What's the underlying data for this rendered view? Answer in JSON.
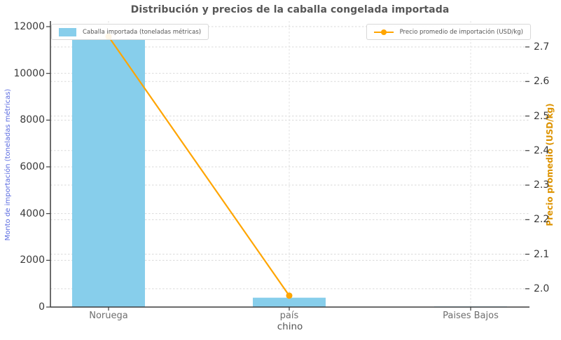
{
  "chart_data": {
    "type": "bar",
    "subtype": "bar+line dual-axis combo",
    "title": "Distribución y precios de la caballa congelada importada",
    "categories": [
      "Noruega",
      "país",
      "Paises Bajos"
    ],
    "xlabel": "chino",
    "series": [
      {
        "name": "Caballa importada (toneladas métricas)",
        "type": "bar",
        "axis": "left",
        "color": "#87CEEB",
        "values": [
          11440,
          400,
          25
        ]
      },
      {
        "name": "Precio promedio de importación (USD/kg)",
        "type": "line",
        "axis": "right",
        "color": "#FFA500",
        "marker": "circle",
        "values": [
          2.73,
          1.98,
          null
        ]
      }
    ],
    "left_axis": {
      "label": "Monto de importación (toneladas métricas)",
      "color": "#5a6be0",
      "ticks": [
        0,
        2000,
        4000,
        6000,
        8000,
        10000,
        12000
      ],
      "range": [
        0,
        12240
      ]
    },
    "right_axis": {
      "label": "Precio promedio (USD/kg)",
      "color": "#dd9300",
      "ticks": [
        2.0,
        2.1,
        2.2,
        2.3,
        2.4,
        2.5,
        2.6,
        2.7
      ],
      "range": [
        1.947,
        2.775
      ]
    },
    "grid": {
      "horizontal": "dashed from both axes",
      "vertical": "dashed at category centers"
    },
    "legend_position": [
      "upper left",
      "upper right"
    ]
  }
}
